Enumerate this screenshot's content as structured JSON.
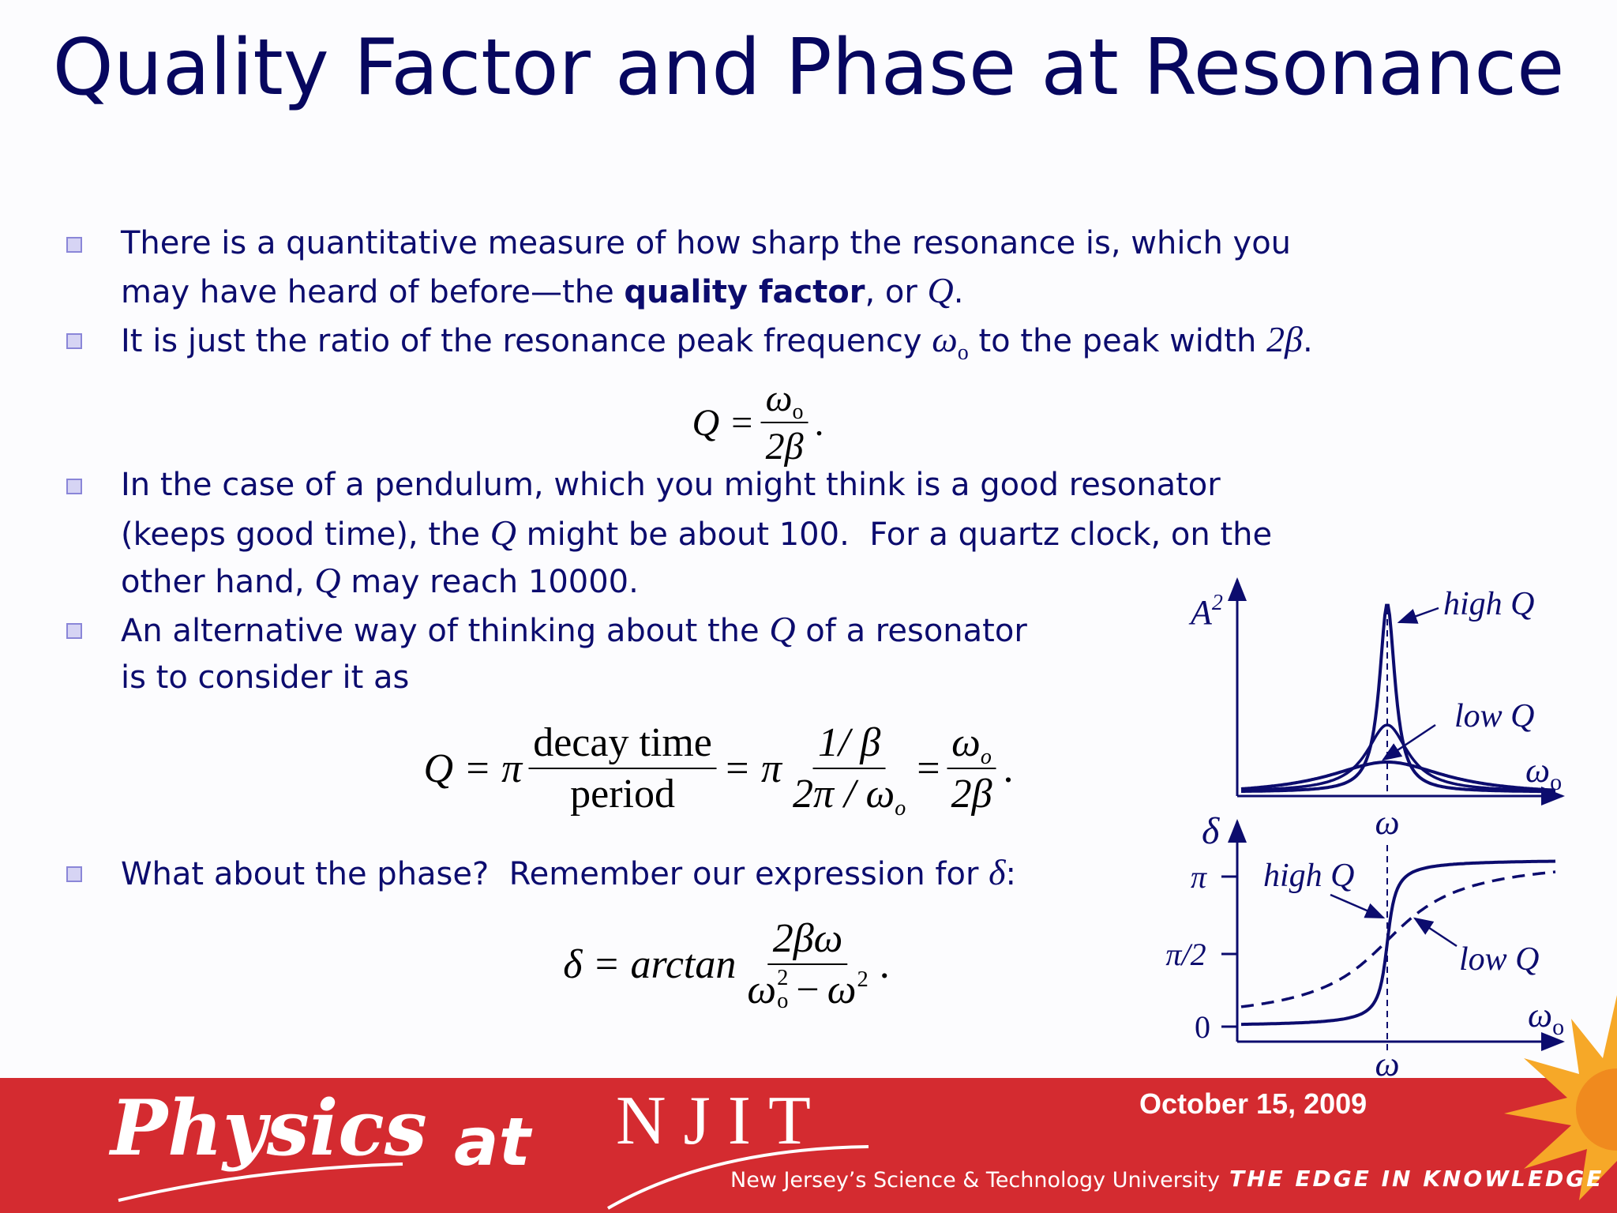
{
  "title": "Quality Factor and Phase at Resonance",
  "bullets": [
    [
      [
        "There is a quantitative measure of how sharp the resonance is, which you"
      ],
      [
        "may have heard of before—the ",
        "quality factor",
        ", or ",
        "Q",
        "."
      ]
    ],
    [
      [
        "It is just the ratio of the resonance peak frequency ",
        "ω",
        "o",
        " to the peak width ",
        "2β",
        "."
      ]
    ],
    [
      [
        "In the case of a pendulum, which you might think is a good resonator"
      ],
      [
        "(keeps good time), the ",
        "Q",
        " might be about 100.  For a quartz clock, on the"
      ],
      [
        "other hand, ",
        "Q",
        " may reach 10000."
      ]
    ],
    [
      [
        "An alternative way of thinking about the ",
        "Q",
        " of a resonator"
      ],
      [
        "is to consider it as"
      ]
    ],
    [
      [
        "What about the phase?  Remember our expression for ",
        "δ",
        ":"
      ]
    ]
  ],
  "equations": [
    {
      "lhs": "Q =",
      "num": {
        "base": "ω",
        "sub": "o"
      },
      "den": "2β",
      "end": "."
    },
    {
      "lhs": "Q = π",
      "frac1": {
        "num": "decay time",
        "den": "period"
      },
      "mid1": "= π",
      "frac2": {
        "num": "1/ β",
        "den": {
          "base": "2π / ω",
          "sub": "o"
        }
      },
      "mid2": "=",
      "frac3": {
        "num": {
          "base": "ω",
          "sub": "o"
        },
        "den": "2β"
      },
      "end": "."
    },
    {
      "lhs": "δ = arctan",
      "num": "2βω",
      "den": {
        "a": "ω",
        "a_sup": "2",
        "a_sub": "o",
        "op": "−",
        "b": "ω",
        "b_sup": "2"
      },
      "end": "."
    }
  ],
  "figure": {
    "top": {
      "y_label": "A",
      "y_label_sup": "2",
      "high": "high Q",
      "low": "low Q",
      "x_end": "ω",
      "x_end_sub": "o",
      "x_mark": "ω"
    },
    "bottom": {
      "y_label": "δ",
      "tick_pi": "π",
      "tick_half": "π/2",
      "tick_zero": "0",
      "high": "high Q",
      "low": "low Q",
      "x_end": "ω",
      "x_end_sub": "o",
      "x_mark": "ω"
    }
  },
  "footer": {
    "brand": "Physics",
    "brand_at": "at",
    "logo": "NJIT",
    "university": "New Jersey’s Science & Technology University",
    "date": "October 15, 2009",
    "slogan": "THE EDGE IN KNOWLEDGE"
  }
}
